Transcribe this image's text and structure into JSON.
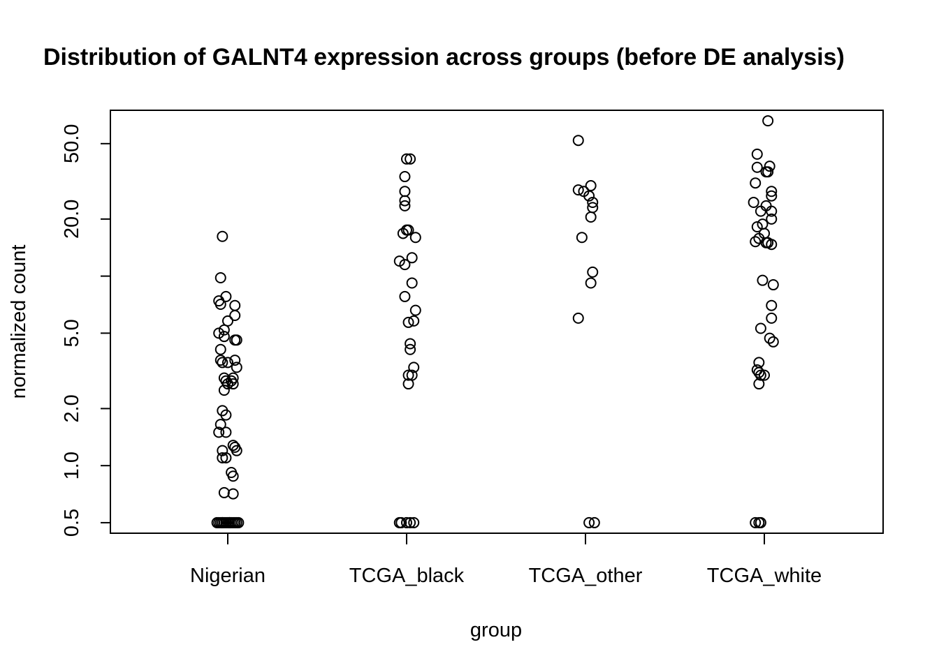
{
  "chart_data": {
    "type": "scatter",
    "title": "Distribution of GALNT4 expression across groups (before DE analysis)",
    "xlabel": "group",
    "ylabel": "normalized count",
    "y_scale": "log",
    "ylim": [
      0.44,
      75
    ],
    "y_ticks": [
      0.5,
      1.0,
      2.0,
      5.0,
      10.0,
      20.0,
      50.0
    ],
    "y_tick_labels": [
      "0.5",
      "1.0",
      "2.0",
      "5.0",
      "",
      "20.0",
      "50.0"
    ],
    "categories": [
      "Nigerian",
      "TCGA_black",
      "TCGA_other",
      "TCGA_white"
    ],
    "grid": false,
    "series": [
      {
        "category": "Nigerian",
        "values": [
          16.2,
          9.8,
          7.4,
          7.1,
          7.8,
          5.8,
          6.2,
          7.0,
          5.2,
          5.0,
          4.8,
          4.6,
          4.6,
          4.1,
          3.6,
          3.5,
          3.5,
          3.6,
          3.3,
          2.9,
          2.8,
          2.7,
          2.8,
          2.9,
          2.7,
          2.5,
          1.95,
          1.85,
          1.65,
          1.5,
          1.5,
          1.28,
          1.25,
          1.2,
          1.2,
          1.1,
          1.1,
          0.92,
          0.88,
          0.72,
          0.71,
          0.5,
          0.5,
          0.5,
          0.5,
          0.5,
          0.5,
          0.5,
          0.5,
          0.5,
          0.5,
          0.5,
          0.5,
          0.5,
          0.5,
          0.5
        ],
        "jitter": [
          -0.03,
          -0.04,
          -0.05,
          -0.04,
          -0.01,
          0.0,
          0.04,
          0.04,
          -0.02,
          -0.05,
          -0.02,
          0.04,
          0.05,
          -0.04,
          -0.04,
          -0.03,
          0.0,
          0.04,
          0.05,
          -0.02,
          -0.01,
          0.0,
          0.02,
          0.03,
          0.03,
          -0.02,
          -0.03,
          -0.01,
          -0.04,
          -0.05,
          -0.01,
          0.03,
          0.04,
          -0.03,
          0.05,
          -0.03,
          -0.01,
          0.02,
          0.03,
          -0.02,
          0.03,
          -0.06,
          -0.05,
          -0.04,
          -0.03,
          -0.02,
          -0.01,
          0.0,
          0.01,
          0.02,
          0.03,
          0.04,
          0.05,
          0.06,
          -0.03,
          0.01
        ]
      },
      {
        "category": "TCGA_black",
        "values": [
          41.5,
          41.5,
          33.5,
          28.0,
          25.0,
          23.5,
          17.5,
          17.5,
          16.8,
          16.0,
          12.5,
          12.0,
          11.5,
          9.2,
          7.8,
          6.6,
          5.8,
          5.7,
          4.4,
          4.1,
          3.3,
          3.0,
          3.0,
          2.7,
          0.5,
          0.5,
          0.5,
          0.5,
          0.5
        ],
        "jitter": [
          0.0,
          0.02,
          -0.01,
          -0.01,
          -0.01,
          -0.01,
          0.0,
          0.01,
          -0.02,
          0.05,
          0.03,
          -0.04,
          -0.01,
          0.03,
          -0.01,
          0.05,
          0.04,
          0.01,
          0.02,
          0.02,
          0.04,
          0.01,
          0.03,
          0.01,
          -0.04,
          -0.03,
          0.0,
          0.02,
          0.04
        ]
      },
      {
        "category": "TCGA_other",
        "values": [
          52.0,
          28.5,
          28.0,
          30.0,
          26.5,
          24.5,
          23.0,
          20.5,
          16.0,
          10.5,
          9.2,
          6.0,
          0.5,
          0.5
        ],
        "jitter": [
          -0.04,
          -0.04,
          -0.01,
          0.03,
          0.02,
          0.04,
          0.04,
          0.03,
          -0.02,
          0.04,
          0.03,
          -0.04,
          0.02,
          0.05
        ]
      },
      {
        "category": "TCGA_white",
        "values": [
          66.0,
          44.0,
          37.5,
          38.0,
          35.5,
          35.5,
          31.0,
          28.0,
          26.5,
          24.5,
          23.5,
          22.0,
          22.0,
          20.0,
          18.8,
          18.2,
          16.8,
          15.8,
          15.2,
          15.0,
          15.0,
          14.7,
          9.5,
          9.0,
          7.0,
          6.0,
          5.3,
          4.7,
          4.5,
          3.5,
          3.2,
          3.1,
          3.0,
          3.0,
          2.7,
          0.5,
          0.5,
          0.5
        ],
        "jitter": [
          0.02,
          -0.04,
          -0.04,
          0.03,
          0.01,
          0.02,
          -0.05,
          0.04,
          0.04,
          -0.06,
          0.01,
          -0.02,
          0.04,
          0.04,
          -0.01,
          -0.04,
          0.0,
          -0.03,
          -0.05,
          0.01,
          0.02,
          0.04,
          -0.01,
          0.05,
          0.04,
          0.04,
          -0.02,
          0.03,
          0.05,
          -0.03,
          -0.04,
          -0.03,
          0.0,
          -0.02,
          -0.03,
          -0.05,
          -0.03,
          -0.02
        ]
      }
    ]
  }
}
